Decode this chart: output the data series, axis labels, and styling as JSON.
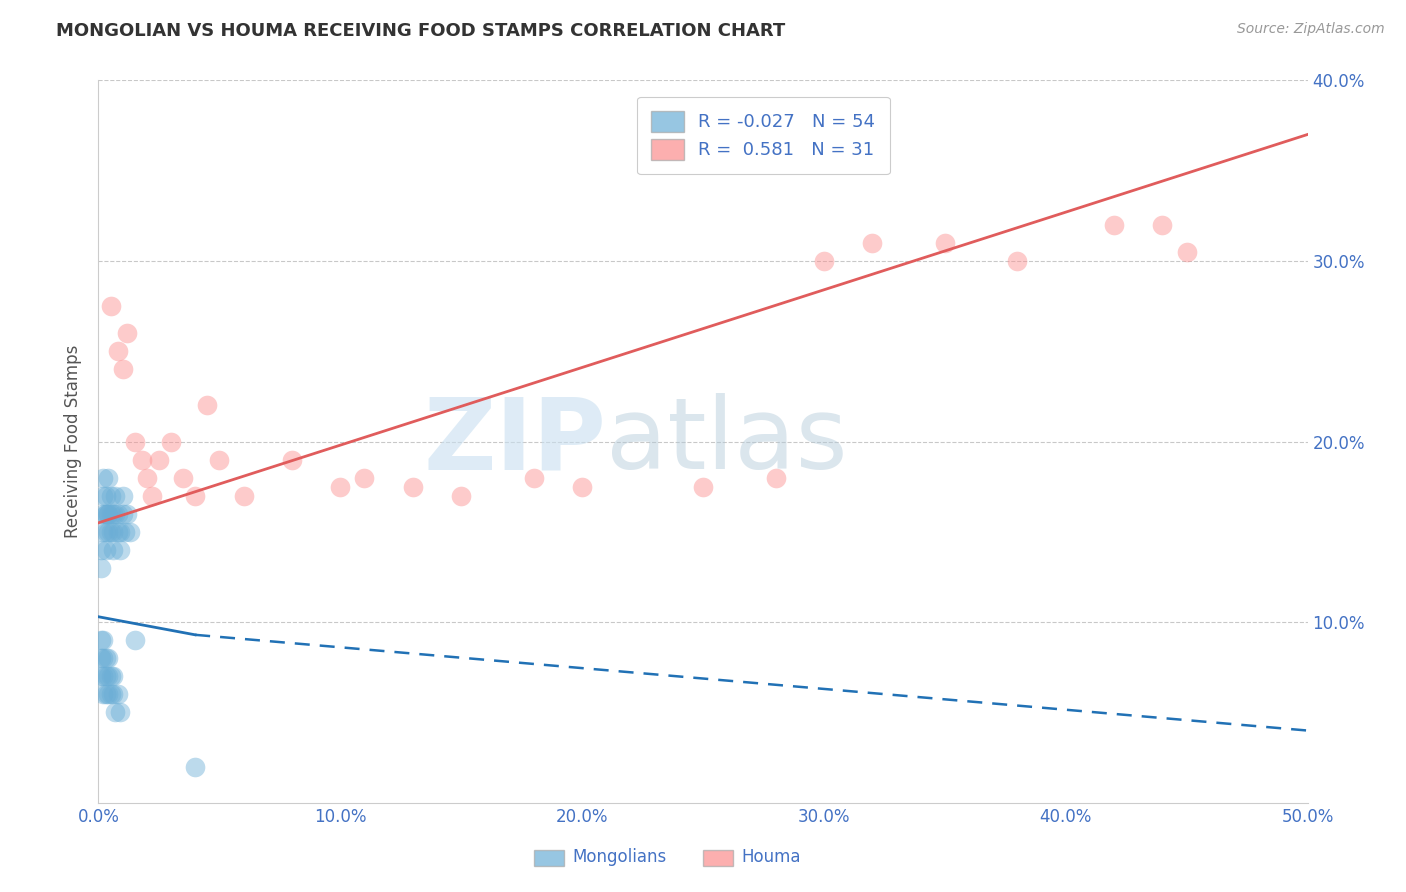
{
  "title": "MONGOLIAN VS HOUMA RECEIVING FOOD STAMPS CORRELATION CHART",
  "source_text": "Source: ZipAtlas.com",
  "ylabel": "Receiving Food Stamps",
  "xlim": [
    0.0,
    0.5
  ],
  "ylim": [
    0.0,
    0.4
  ],
  "xtick_labels": [
    "0.0%",
    "10.0%",
    "20.0%",
    "30.0%",
    "40.0%",
    "50.0%"
  ],
  "xtick_vals": [
    0.0,
    0.1,
    0.2,
    0.3,
    0.4,
    0.5
  ],
  "ytick_labels": [
    "10.0%",
    "20.0%",
    "30.0%",
    "40.0%"
  ],
  "ytick_vals": [
    0.1,
    0.2,
    0.3,
    0.4
  ],
  "mongolian_color": "#6baed6",
  "houma_color": "#fc8d8d",
  "mongolian_line_color": "#2171b5",
  "houma_line_color": "#e05c5c",
  "R_mongolian": -0.027,
  "N_mongolian": 54,
  "R_houma": 0.581,
  "N_houma": 31,
  "legend_label_mongolians": "Mongolians",
  "legend_label_houma": "Houma",
  "watermark_zip": "ZIP",
  "watermark_atlas": "atlas",
  "mongolian_x": [
    0.001,
    0.001,
    0.002,
    0.002,
    0.002,
    0.002,
    0.003,
    0.003,
    0.003,
    0.003,
    0.003,
    0.004,
    0.004,
    0.004,
    0.004,
    0.005,
    0.005,
    0.005,
    0.006,
    0.006,
    0.006,
    0.007,
    0.007,
    0.008,
    0.008,
    0.009,
    0.009,
    0.01,
    0.01,
    0.011,
    0.012,
    0.013,
    0.001,
    0.001,
    0.001,
    0.002,
    0.002,
    0.002,
    0.002,
    0.003,
    0.003,
    0.003,
    0.004,
    0.004,
    0.004,
    0.005,
    0.005,
    0.006,
    0.006,
    0.007,
    0.008,
    0.009,
    0.015,
    0.04
  ],
  "mongolian_y": [
    0.14,
    0.13,
    0.16,
    0.17,
    0.15,
    0.18,
    0.16,
    0.17,
    0.15,
    0.16,
    0.14,
    0.16,
    0.15,
    0.18,
    0.16,
    0.17,
    0.16,
    0.15,
    0.16,
    0.15,
    0.14,
    0.17,
    0.16,
    0.15,
    0.16,
    0.15,
    0.14,
    0.17,
    0.16,
    0.15,
    0.16,
    0.15,
    0.09,
    0.08,
    0.07,
    0.09,
    0.08,
    0.07,
    0.06,
    0.08,
    0.07,
    0.06,
    0.08,
    0.07,
    0.06,
    0.07,
    0.06,
    0.07,
    0.06,
    0.05,
    0.06,
    0.05,
    0.09,
    0.02
  ],
  "houma_x": [
    0.005,
    0.008,
    0.01,
    0.012,
    0.015,
    0.018,
    0.02,
    0.022,
    0.025,
    0.03,
    0.035,
    0.04,
    0.045,
    0.05,
    0.06,
    0.08,
    0.1,
    0.11,
    0.13,
    0.15,
    0.18,
    0.2,
    0.25,
    0.28,
    0.3,
    0.32,
    0.35,
    0.38,
    0.42,
    0.44,
    0.45
  ],
  "houma_y": [
    0.275,
    0.25,
    0.24,
    0.26,
    0.2,
    0.19,
    0.18,
    0.17,
    0.19,
    0.2,
    0.18,
    0.17,
    0.22,
    0.19,
    0.17,
    0.19,
    0.175,
    0.18,
    0.175,
    0.17,
    0.18,
    0.175,
    0.175,
    0.18,
    0.3,
    0.31,
    0.31,
    0.3,
    0.32,
    0.32,
    0.305
  ],
  "houma_line_start_y": 0.155,
  "houma_line_end_y": 0.37,
  "mongolian_line_solid_start_x": 0.0,
  "mongolian_line_solid_end_x": 0.04,
  "mongolian_line_solid_start_y": 0.103,
  "mongolian_line_solid_end_y": 0.093,
  "mongolian_line_dash_start_x": 0.04,
  "mongolian_line_dash_end_x": 0.5,
  "mongolian_line_dash_start_y": 0.093,
  "mongolian_line_dash_end_y": 0.04
}
